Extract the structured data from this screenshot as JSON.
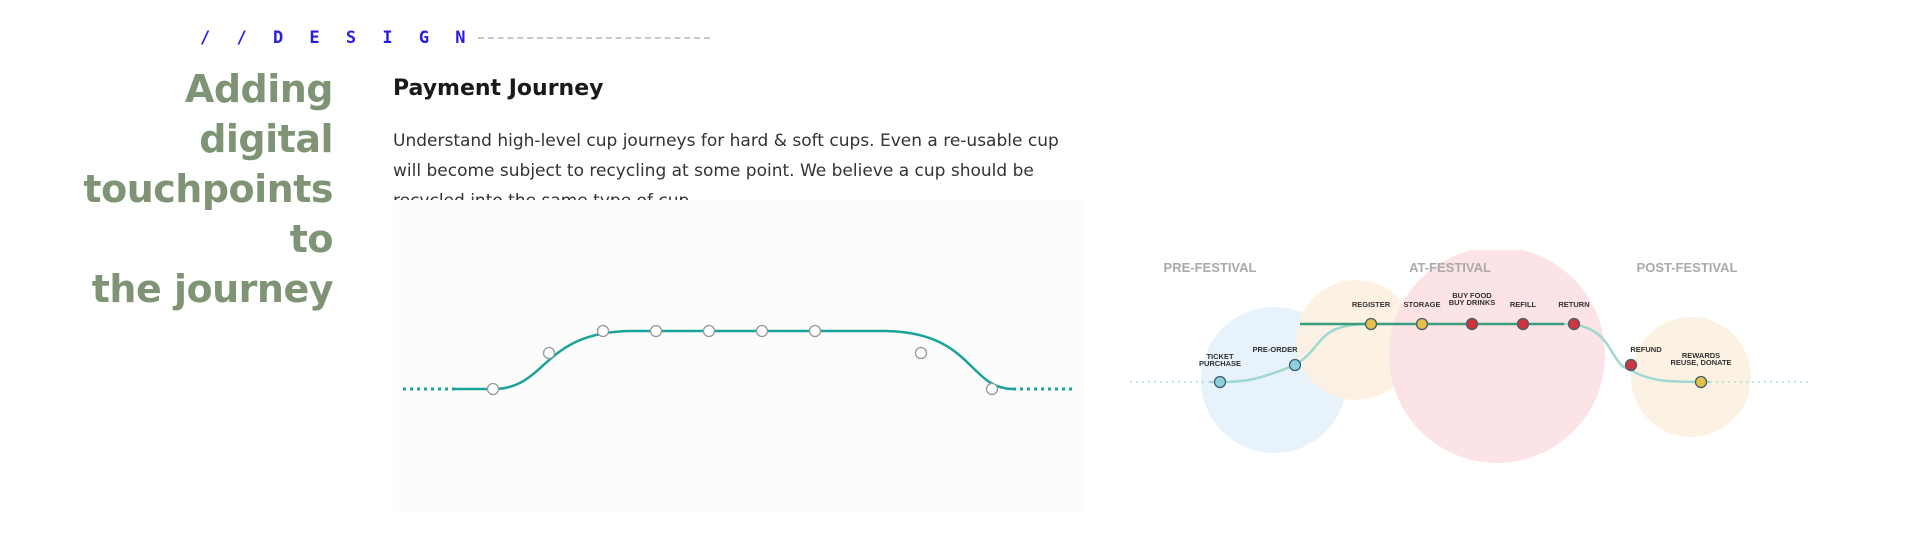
{
  "section_tag": "/ / D E S I G N",
  "headline": "Adding digital\ntouchpoints to\nthe journey",
  "section_title": "Payment Journey",
  "description": "Understand high-level cup journeys for hard & soft cups. Even a re-usable cup will become subject to recycling at some point. We believe a cup should be recycled into the same type of cup.",
  "colors": {
    "tag": "#2b1de0",
    "headline": "#7e9474",
    "journey_line": "#1aa39c",
    "pre_festival_bg": "#e4f1fb",
    "at_festival_bg": "#fbe0e3",
    "storage_bg": "#fcefe0",
    "post_festival_bg": "#fcf1e2",
    "node_blue": "#8ecfe0",
    "node_yellow": "#e6c14a",
    "node_red": "#d2343e"
  },
  "festival_diagram": {
    "phases": [
      {
        "label": "PRE-FESTIVAL"
      },
      {
        "label": "AT-FESTIVAL"
      },
      {
        "label": "POST-FESTIVAL"
      }
    ],
    "touchpoints": [
      {
        "label": [
          "TICKET",
          "PURCHASE"
        ],
        "color": "#8ecfe0"
      },
      {
        "label": [
          "PRE-ORDER"
        ],
        "color": "#8ecfe0"
      },
      {
        "label": [
          "REGISTER"
        ],
        "color": "#e6c14a"
      },
      {
        "label": [
          "STORAGE"
        ],
        "color": "#e6c14a"
      },
      {
        "label": [
          "BUY FOOD",
          "BUY DRINKS"
        ],
        "color": "#d2343e"
      },
      {
        "label": [
          "REFILL"
        ],
        "color": "#d2343e"
      },
      {
        "label": [
          "RETURN"
        ],
        "color": "#d2343e"
      },
      {
        "label": [
          "REFUND"
        ],
        "color": "#d2343e"
      },
      {
        "label": [
          "REWARDS",
          "REUSE, DONATE"
        ],
        "color": "#e6c14a"
      }
    ]
  }
}
